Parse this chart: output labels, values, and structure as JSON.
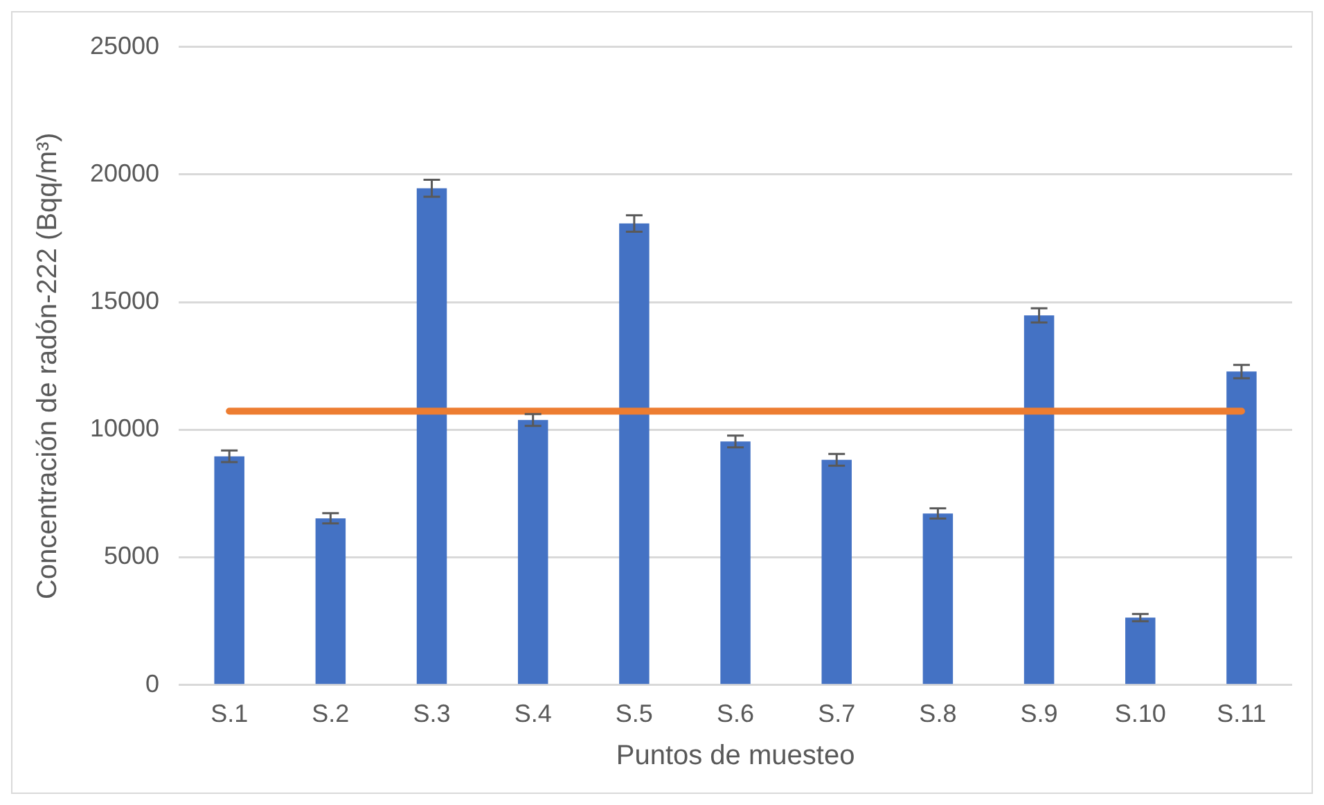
{
  "chart_data": {
    "type": "bar",
    "xlabel": "Puntos de muesteo",
    "ylabel": "Concentración de radón-222 (Bqq/m³)",
    "categories": [
      "S.1",
      "S.2",
      "S.3",
      "S.4",
      "S.5",
      "S.6",
      "S.7",
      "S.8",
      "S.9",
      "S.10",
      "S.11"
    ],
    "series": [
      {
        "color": "#4472c4",
        "values": [
          8960,
          6530,
          19460,
          10380,
          18080,
          9540,
          8820,
          6720,
          14480,
          2640,
          12280
        ],
        "errors": [
          230,
          200,
          330,
          230,
          320,
          230,
          230,
          200,
          280,
          140,
          260
        ]
      },
      {
        "type": "line",
        "color": "#ed7d31",
        "marker": "none",
        "values": [
          10730,
          10730,
          10730,
          10730,
          10730,
          10730,
          10730,
          10730,
          10730,
          10730,
          10730
        ]
      }
    ],
    "ylim": [
      0,
      25000
    ],
    "yticks": [
      0,
      5000,
      10000,
      15000,
      20000,
      25000
    ],
    "grid": "y",
    "legend": false
  }
}
